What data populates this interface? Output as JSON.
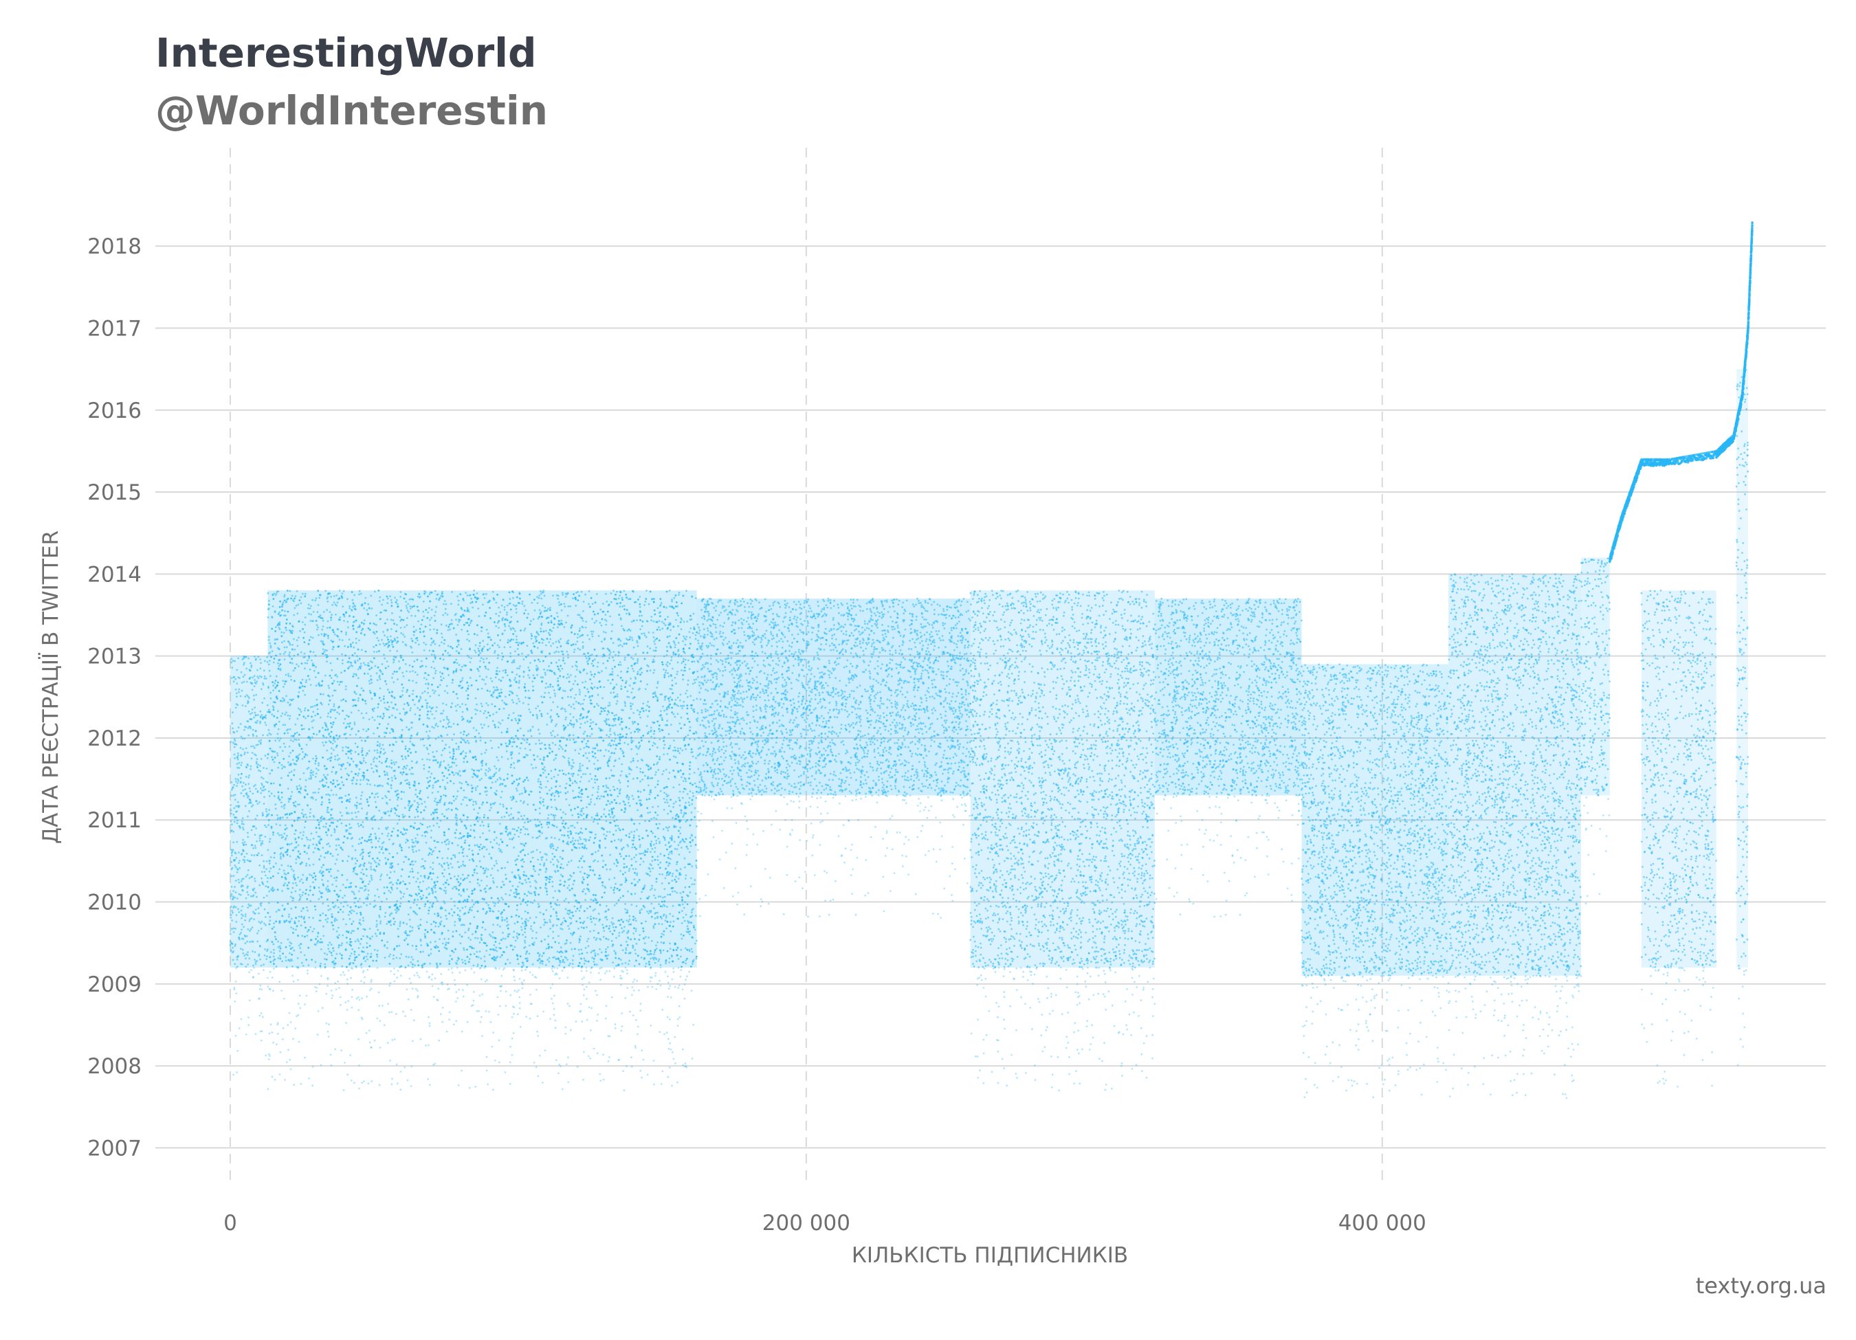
{
  "header": {
    "title": "InterestingWorld",
    "subtitle": "@WorldInterestin"
  },
  "source": "texty.org.ua",
  "colors": {
    "points": "#29b6f6",
    "grid": "#d9d9d9",
    "text": "#6e6e6e"
  },
  "chart_data": {
    "type": "scatter",
    "title": "InterestingWorld",
    "subtitle": "@WorldInterestin",
    "xlabel": "КІЛЬКІСТЬ ПІДПИСНИКІВ",
    "ylabel": "ДАТА РЕЄСТРАЦІЇ В TWITTER",
    "xlim": [
      -26000,
      554000
    ],
    "ylim": [
      2006.4,
      2019.2
    ],
    "x_ticks": [
      0,
      200000,
      400000
    ],
    "x_tick_labels": [
      "0",
      "200 000",
      "400 000"
    ],
    "y_ticks": [
      2007,
      2008,
      2009,
      2010,
      2011,
      2012,
      2013,
      2014,
      2015,
      2016,
      2017,
      2018
    ],
    "y_tick_labels": [
      "2007",
      "2008",
      "2009",
      "2010",
      "2011",
      "2012",
      "2013",
      "2014",
      "2015",
      "2016",
      "2017",
      "2018"
    ],
    "grid": {
      "horizontal": "solid",
      "vertical": "dashed"
    },
    "density_blocks": [
      {
        "x0": 0,
        "x1": 13000,
        "y0": 2009.2,
        "y1": 2013.0,
        "weight": 0.9
      },
      {
        "x0": 13000,
        "x1": 162000,
        "y0": 2009.2,
        "y1": 2013.8,
        "weight": 1.0
      },
      {
        "x0": 162000,
        "x1": 257000,
        "y0": 2011.3,
        "y1": 2013.7,
        "weight": 1.1
      },
      {
        "x0": 257000,
        "x1": 321000,
        "y0": 2009.2,
        "y1": 2013.8,
        "weight": 0.8
      },
      {
        "x0": 321000,
        "x1": 372000,
        "y0": 2011.3,
        "y1": 2013.7,
        "weight": 1.0
      },
      {
        "x0": 372000,
        "x1": 423000,
        "y0": 2009.1,
        "y1": 2012.9,
        "weight": 0.9
      },
      {
        "x0": 423000,
        "x1": 469000,
        "y0": 2009.1,
        "y1": 2014.0,
        "weight": 0.8
      },
      {
        "x0": 469000,
        "x1": 479000,
        "y0": 2011.3,
        "y1": 2014.2,
        "weight": 0.7
      },
      {
        "x0": 490000,
        "x1": 516000,
        "y0": 2009.2,
        "y1": 2013.8,
        "weight": 0.6
      },
      {
        "x0": 523000,
        "x1": 527000,
        "y0": 2009.2,
        "y1": 2016.5,
        "weight": 0.5
      }
    ],
    "growth_curve": {
      "x": [
        479000,
        483000,
        487000,
        490000,
        500000,
        516000,
        519000,
        522000,
        525000,
        527000,
        528500
      ],
      "y": [
        2014.2,
        2014.7,
        2015.1,
        2015.4,
        2015.4,
        2015.5,
        2015.6,
        2015.7,
        2016.2,
        2017.0,
        2018.3
      ]
    }
  }
}
